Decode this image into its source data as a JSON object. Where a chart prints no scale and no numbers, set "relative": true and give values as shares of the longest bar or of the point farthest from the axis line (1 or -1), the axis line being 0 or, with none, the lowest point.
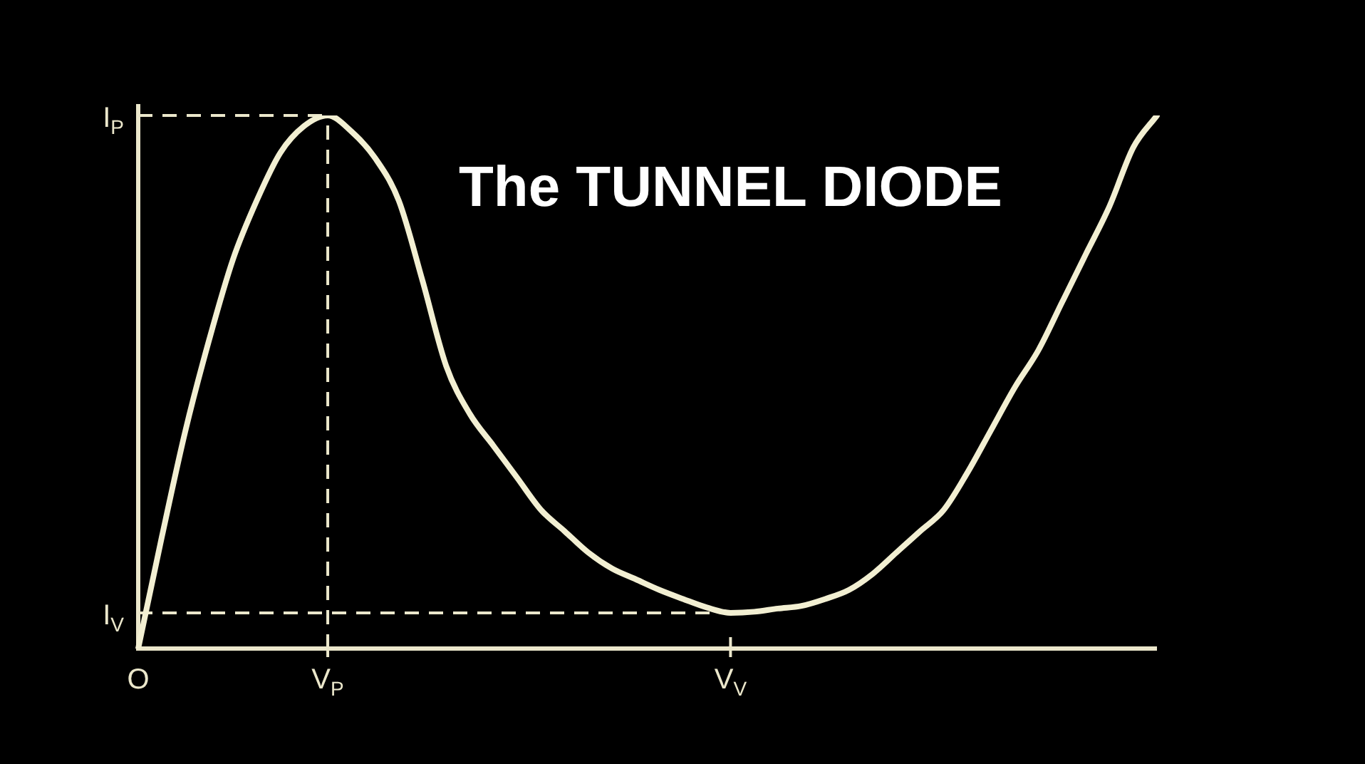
{
  "chart_data": {
    "type": "line",
    "title": "The TUNNEL DIODE",
    "relative": true,
    "marker": "none",
    "line_style": "solid",
    "categories": [
      "O",
      null,
      null,
      null,
      null,
      null,
      null,
      null,
      "V$_{P}$",
      null,
      null,
      null,
      null,
      null,
      null,
      null,
      null,
      null,
      null,
      null,
      null,
      null,
      null,
      null,
      null,
      "V$_{V}$",
      null,
      null,
      null,
      null,
      null,
      null,
      null,
      null,
      null,
      null,
      null,
      null,
      null,
      null,
      null,
      null,
      null,
      null
    ],
    "series": [
      {
        "color": "#f2efd2",
        "values": [
          0,
          0.21,
          0.41,
          0.58,
          0.73,
          0.84,
          0.93,
          0.98,
          1.0,
          0.97,
          0.92,
          0.84,
          0.69,
          0.53,
          0.44,
          0.38,
          0.32,
          0.26,
          0.22,
          0.18,
          0.15,
          0.13,
          0.11,
          0.093,
          0.077,
          0.067,
          0.069,
          0.075,
          0.08,
          0.093,
          0.11,
          0.14,
          0.18,
          0.22,
          0.26,
          0.33,
          0.41,
          0.49,
          0.56,
          0.65,
          0.74,
          0.83,
          0.94,
          1.0
        ]
      }
    ],
    "ref_lines": [
      {
        "axis": "y",
        "value": 1.0,
        "label": "I$_{P}$",
        "line_style": "dashed"
      },
      {
        "axis": "y",
        "value": 0.067,
        "label": "I$_{V}$",
        "line_style": "dashed"
      },
      {
        "axis": "x",
        "value": "V$_{P}$",
        "label": null,
        "line_style": "dashed"
      }
    ]
  }
}
